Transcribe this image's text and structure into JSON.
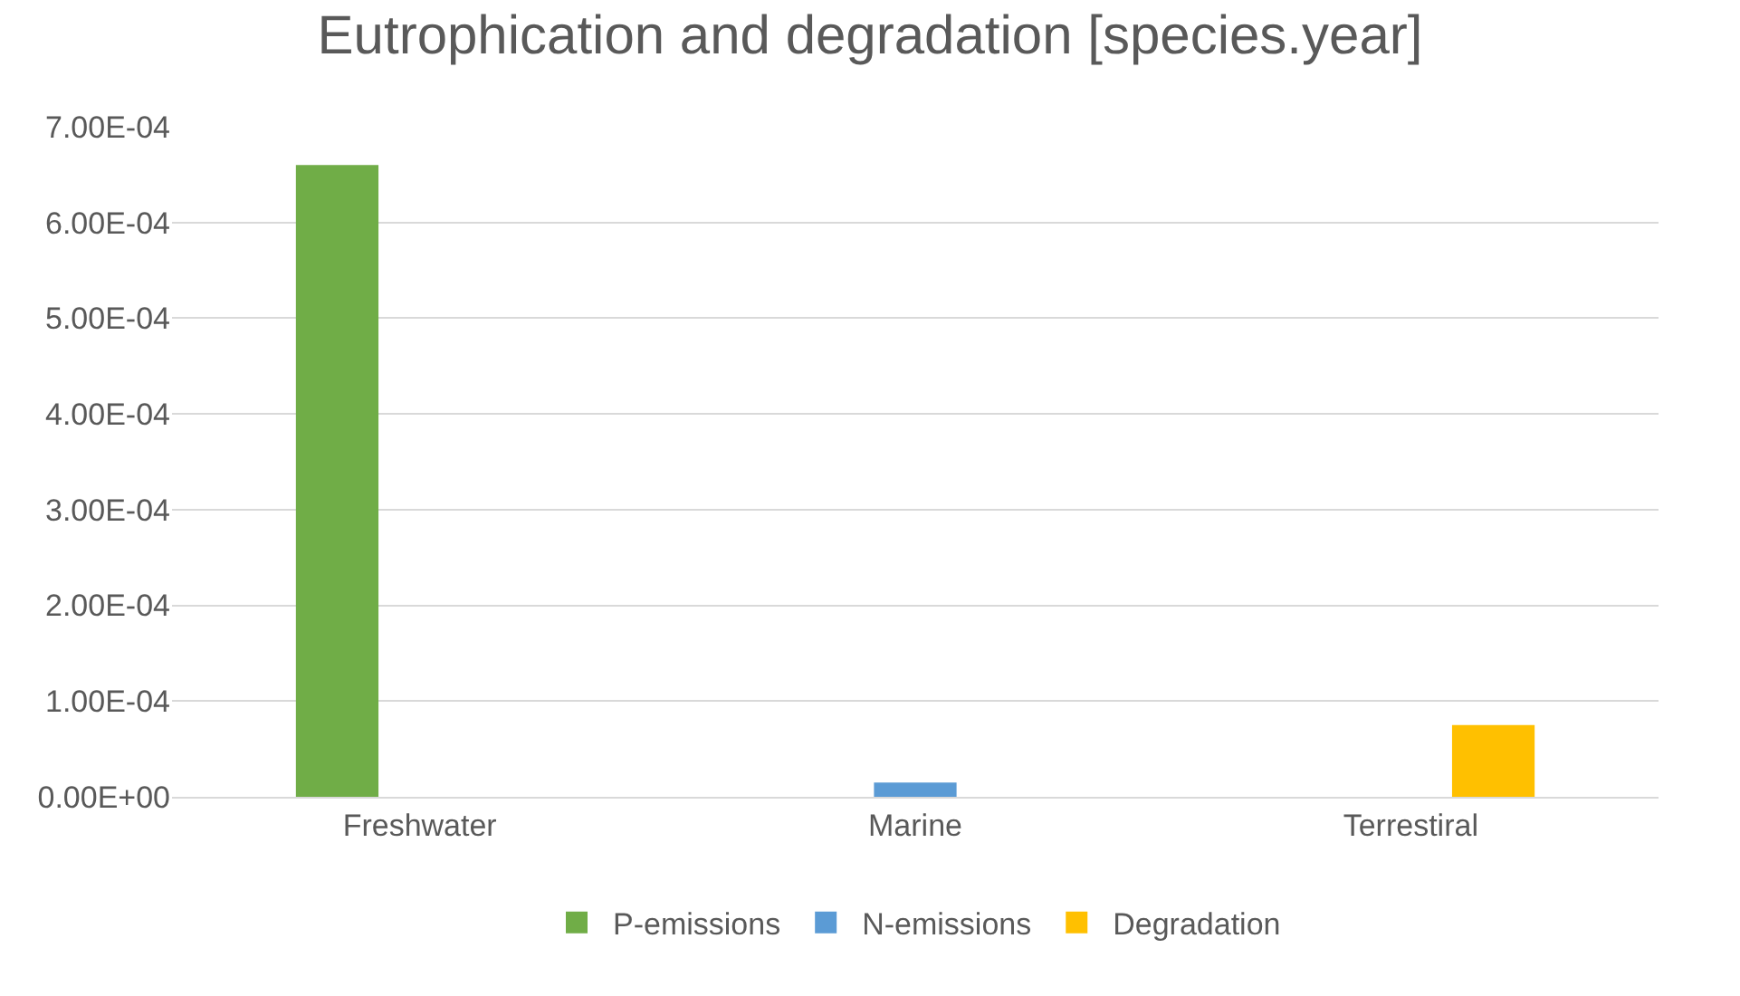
{
  "chart_data": {
    "type": "bar",
    "title": "Eutrophication and degradation [species.year]",
    "categories": [
      "Freshwater",
      "Marine",
      "Terrestiral"
    ],
    "series": [
      {
        "name": "P-emissions",
        "color": "#70ad47",
        "values": [
          0.00066,
          null,
          null
        ]
      },
      {
        "name": "N-emissions",
        "color": "#5b9bd5",
        "values": [
          null,
          1.5e-05,
          null
        ]
      },
      {
        "name": "Degradation",
        "color": "#ffc000",
        "values": [
          null,
          null,
          7.5e-05
        ]
      }
    ],
    "ylim": [
      0,
      0.0007
    ],
    "yticks": [
      {
        "value": 0,
        "label": "0.00E+00"
      },
      {
        "value": 0.0001,
        "label": "1.00E-04"
      },
      {
        "value": 0.0002,
        "label": "2.00E-04"
      },
      {
        "value": 0.0003,
        "label": "3.00E-04"
      },
      {
        "value": 0.0004,
        "label": "4.00E-04"
      },
      {
        "value": 0.0005,
        "label": "5.00E-04"
      },
      {
        "value": 0.0006,
        "label": "6.00E-04"
      },
      {
        "value": 0.0007,
        "label": "7.00E-04"
      }
    ],
    "grid": "y",
    "legend": "bottom"
  }
}
